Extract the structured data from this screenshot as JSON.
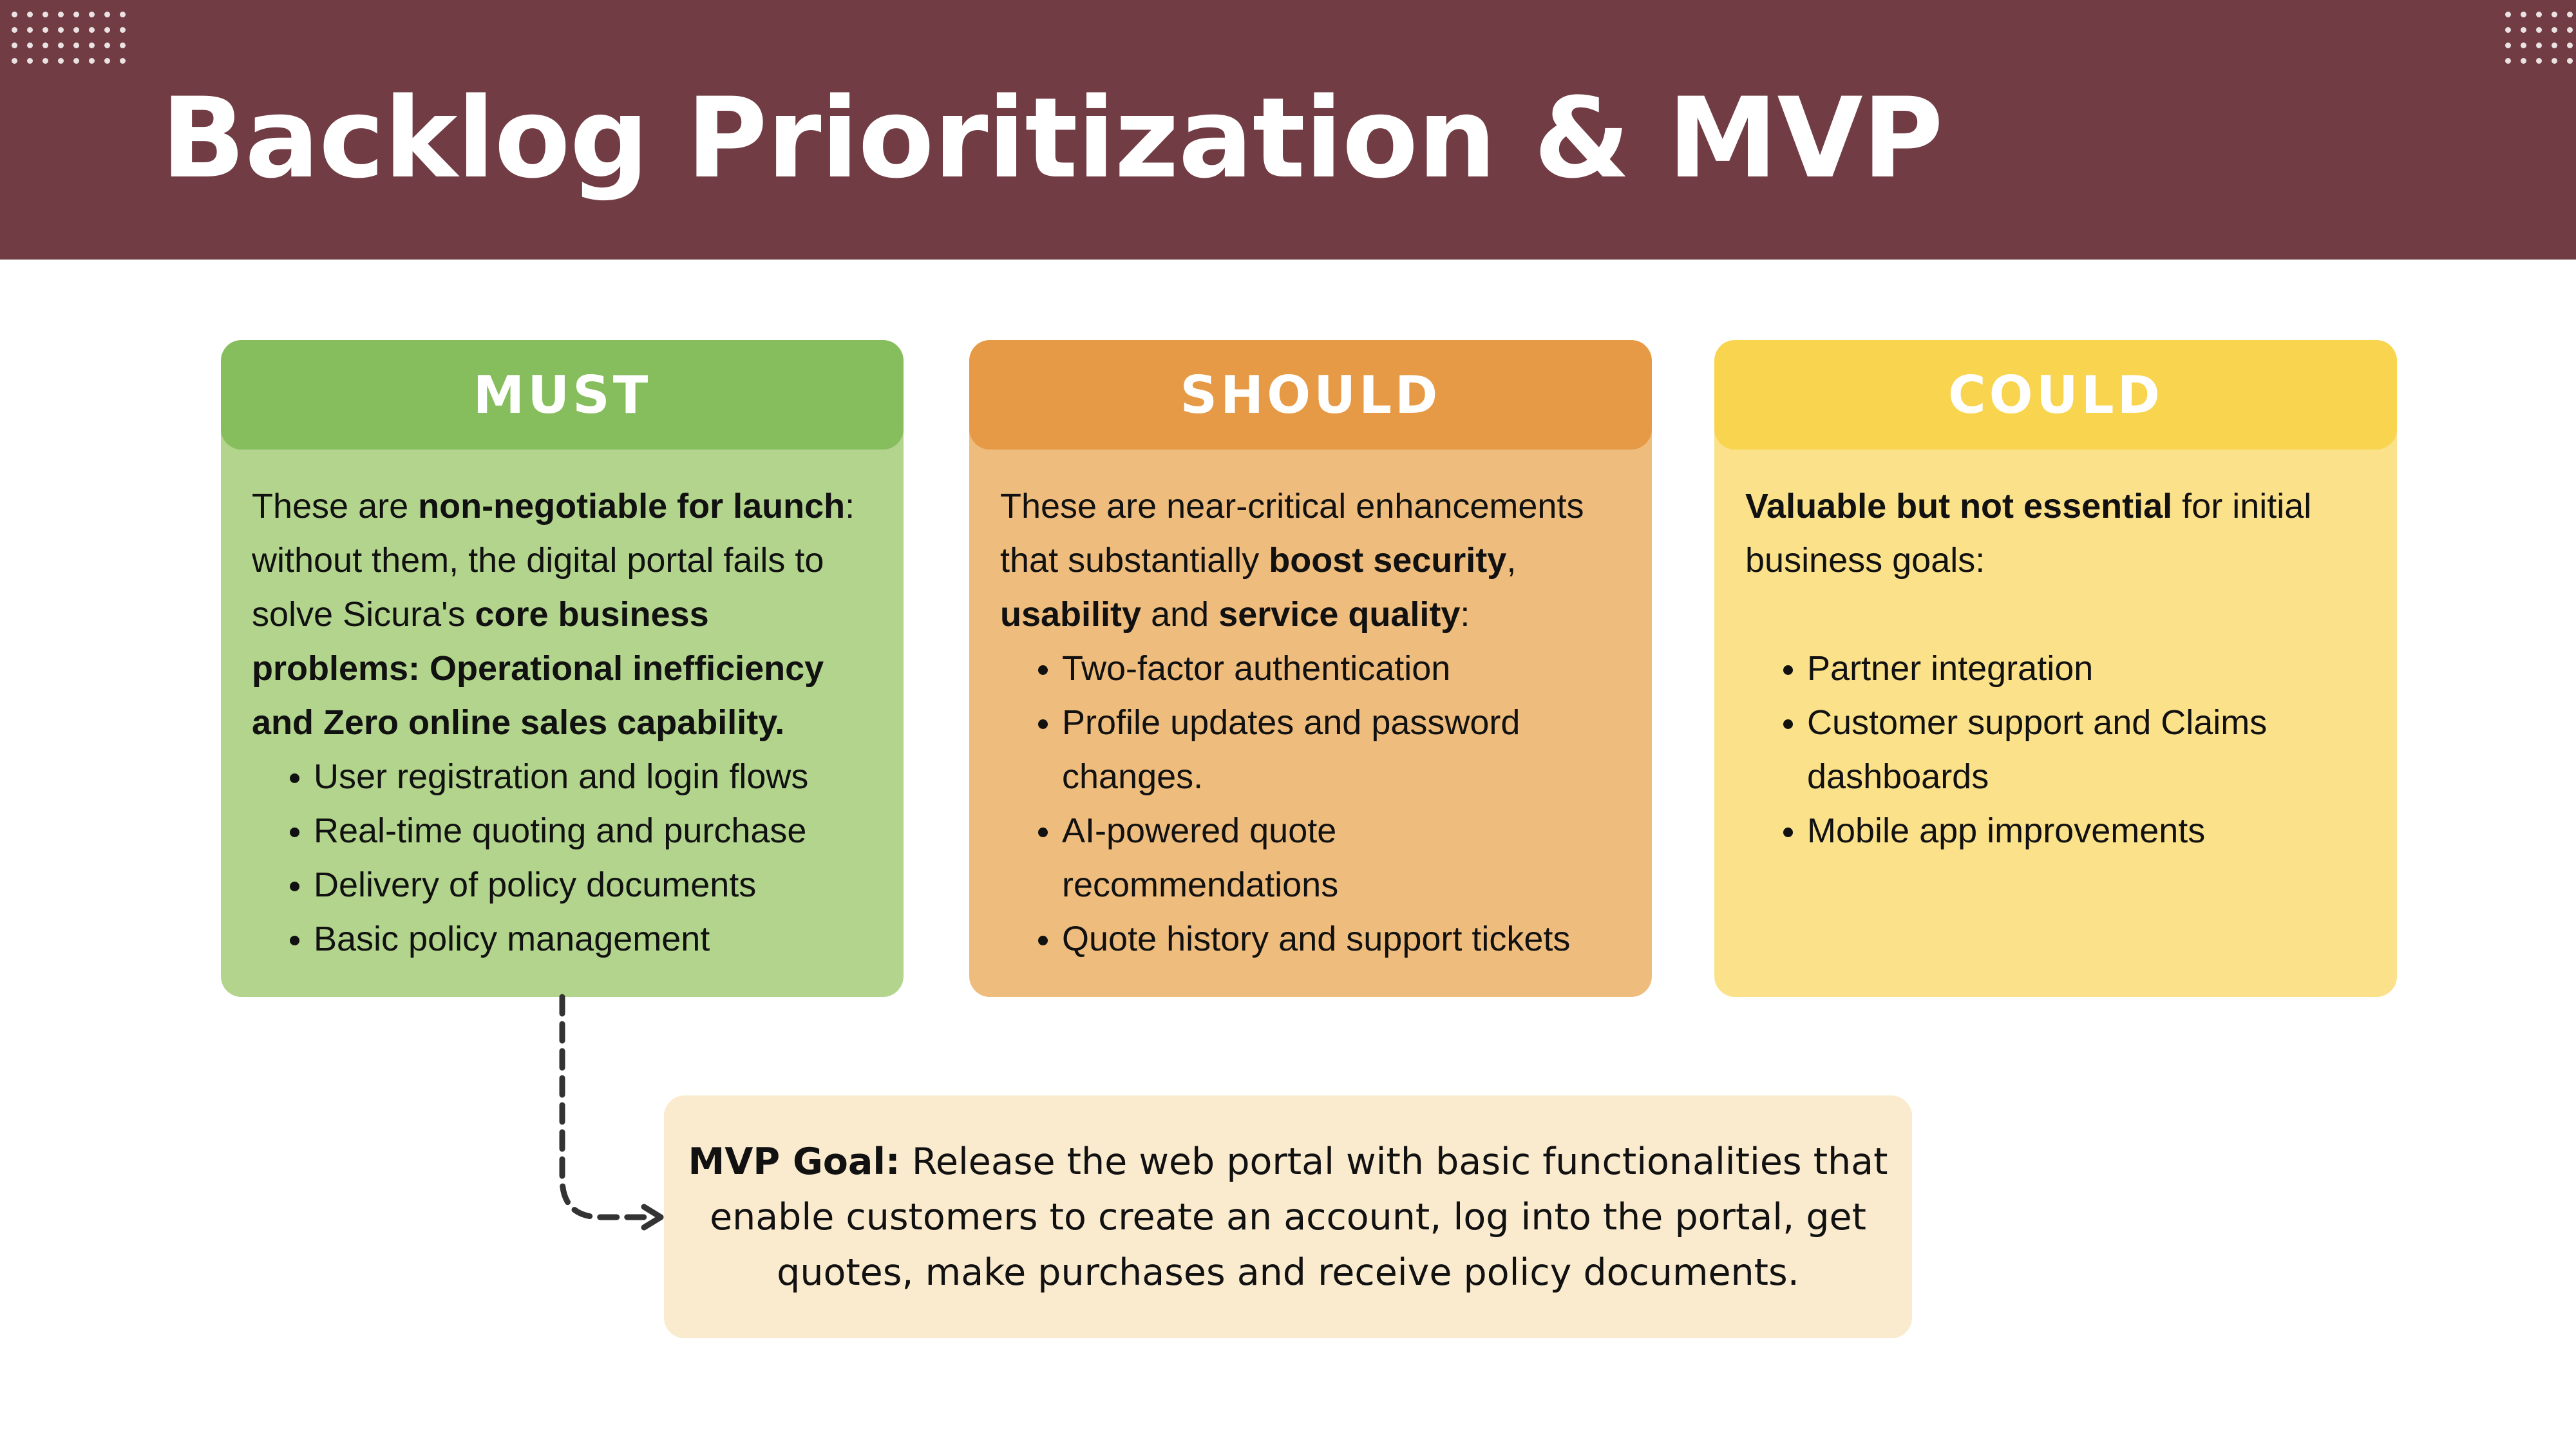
{
  "slide": {
    "title": "Backlog Prioritization & MVP",
    "colors": {
      "header": "#723c44",
      "must": "#86bd5d",
      "should": "#e69a45",
      "could": "#f8d44f"
    }
  },
  "must": {
    "heading": "MUST",
    "intro_1": "These are ",
    "intro_bold_1": "non-negotiable for launch",
    "intro_2": ": without them, the digital portal fails to solve Sicura's ",
    "intro_bold_2": "core business problems: Operational inefficiency and Zero online sales capability.",
    "items": [
      "User registration and login flows",
      "Real-time quoting and purchase",
      "Delivery of policy documents",
      "Basic policy management"
    ]
  },
  "should": {
    "heading": "SHOULD",
    "intro_1": "These are near-critical enhancements that substantially ",
    "intro_bold_1": "boost security",
    "intro_2": ", ",
    "intro_bold_2": "usability",
    "intro_3": " and ",
    "intro_bold_3": "service quality",
    "intro_4": ":",
    "items": [
      "Two-factor authentication",
      "Profile updates and password changes.",
      "AI-powered quote recommendations",
      "Quote history and support tickets"
    ]
  },
  "could": {
    "heading": "COULD",
    "intro_bold_1": "Valuable but not essential",
    "intro_1": " for initial business goals:",
    "items": [
      "Partner integration",
      "Customer support and Claims dashboards",
      "Mobile app improvements"
    ]
  },
  "mvp": {
    "label": "MVP Goal:",
    "text": " Release the web portal with basic functionalities that enable customers to create an account, log into the portal, get quotes, make purchases and receive policy documents."
  }
}
